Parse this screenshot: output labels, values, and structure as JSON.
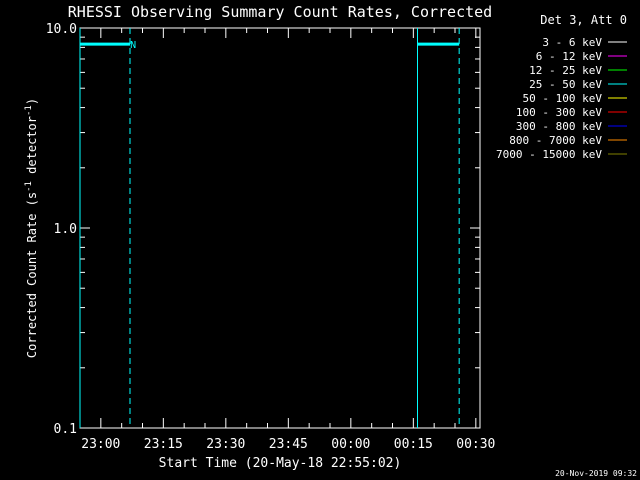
{
  "chart_data": {
    "type": "line",
    "title": "RHESSI Observing Summary Count Rates, Corrected",
    "xlabel": "Start Time (20-May-18 22:55:02)",
    "ylabel": "Corrected Count Rate (s^-1 detector^-1)",
    "yscale": "log",
    "ylim": [
      0.1,
      10.0
    ],
    "xlim_minutes": [
      0,
      96
    ],
    "x_ticks": [
      {
        "label": "23:00",
        "minutes": 5
      },
      {
        "label": "23:15",
        "minutes": 20
      },
      {
        "label": "23:30",
        "minutes": 35
      },
      {
        "label": "23:45",
        "minutes": 50
      },
      {
        "label": "00:00",
        "minutes": 65
      },
      {
        "label": "00:15",
        "minutes": 80
      },
      {
        "label": "00:30",
        "minutes": 95
      }
    ],
    "y_ticks": [
      {
        "label": "0.1",
        "value": 0.1
      },
      {
        "label": "1.0",
        "value": 1.0
      },
      {
        "label": "10.0",
        "value": 10.0
      }
    ],
    "legend": {
      "placement": "top-right",
      "header": "Det 3, Att 0",
      "entries": [
        {
          "label": "3 - 6 keV",
          "color": "#ffffff"
        },
        {
          "label": "6 - 12 keV",
          "color": "#ff00ff"
        },
        {
          "label": "12 - 25 keV",
          "color": "#00ff00"
        },
        {
          "label": "25 - 50 keV",
          "color": "#00ffff"
        },
        {
          "label": "50 - 100 keV",
          "color": "#ffff00"
        },
        {
          "label": "100 - 300 keV",
          "color": "#ff0000"
        },
        {
          "label": "300 - 800 keV",
          "color": "#0000ff"
        },
        {
          "label": "800 - 7000 keV",
          "color": "#ff8c00"
        },
        {
          "label": "7000 - 15000 keV",
          "color": "#808000"
        }
      ]
    },
    "series": [
      {
        "name": "25 - 50 keV",
        "color": "#00ffff",
        "segments": [
          {
            "x": [
              0,
              12
            ],
            "y": [
              8.3,
              8.3
            ]
          },
          {
            "x": [
              81,
              91
            ],
            "y": [
              8.3,
              8.3
            ]
          }
        ]
      }
    ],
    "vertical_markers": [
      {
        "minutes": 0,
        "style": "solid",
        "color": "#00ffff"
      },
      {
        "minutes": 12,
        "style": "dashed",
        "color": "#00ffff"
      },
      {
        "minutes": 81,
        "style": "solid",
        "color": "#00ffff"
      },
      {
        "minutes": 91,
        "style": "dashed",
        "color": "#00ffff"
      }
    ],
    "annotations": [
      {
        "text": "N",
        "minutes": 13,
        "value": 8.3,
        "color": "#00ffff"
      }
    ],
    "footer_timestamp": "20-Nov-2019 09:32"
  }
}
